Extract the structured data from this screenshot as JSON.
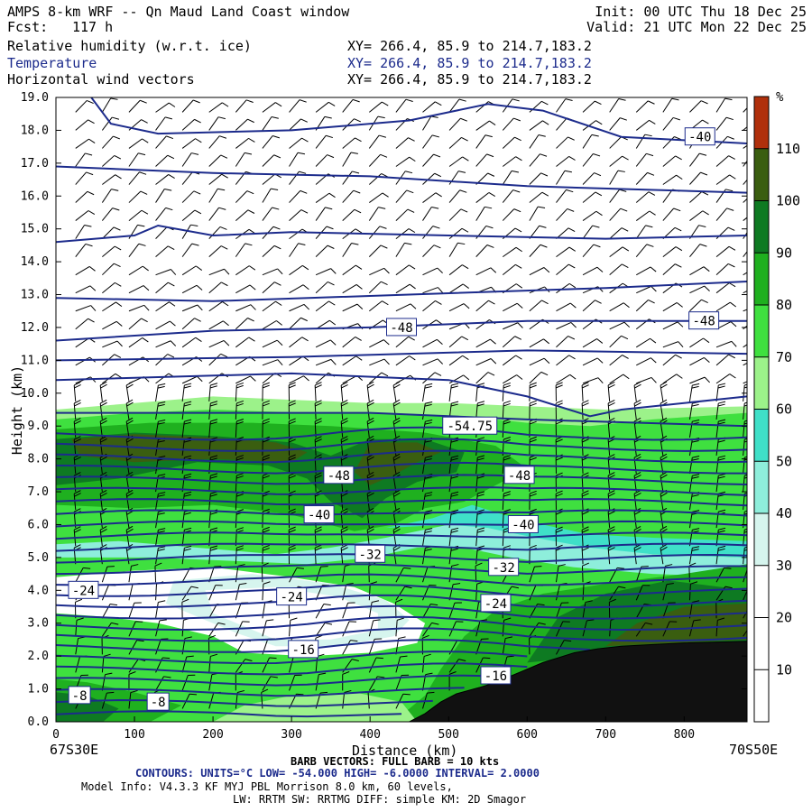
{
  "header": {
    "title_left": "AMPS 8-km WRF -- Qn Maud Land Coast window",
    "fcst_label": "Fcst:",
    "fcst_value": "117 h",
    "init": "Init: 00 UTC Thu 18 Dec 25",
    "valid": "Valid: 21 UTC Mon 22 Dec 25",
    "fields": [
      {
        "name": "Relative humidity (w.r.t. ice)",
        "xy": "XY= 266.4, 85.9 to 214.7,183.2"
      },
      {
        "name": "Temperature",
        "xy": "XY= 266.4, 85.9 to 214.7,183.2"
      },
      {
        "name": "Horizontal wind vectors",
        "xy": "XY= 266.4, 85.9 to 214.7,183.2"
      }
    ]
  },
  "footer": {
    "left_loc": "67S30E",
    "right_loc": "70S50E",
    "barb": "BARB VECTORS: FULL BARB = 10 kts",
    "contours": "CONTOURS: UNITS=°C LOW= -54.000 HIGH= -6.0000 INTERVAL= 2.0000",
    "model1": "Model Info: V4.3.3 KF MYJ PBL Morrison 8.0 km, 60 levels,",
    "model2": "LW: RRTM SW: RRTMG DIFF: simple KM: 2D Smagor"
  },
  "colors": {
    "contour": "#1c2b8c",
    "rh_30_40": "#d6f5ee",
    "rh_40_50": "#8eeedb",
    "rh_50_60": "#3fe0c8",
    "rh_60_70": "#9cf28a",
    "rh_70_80": "#3fe03f",
    "rh_80_90": "#1fb01f",
    "rh_90_100": "#0e7a22",
    "rh_100_110": "#3a5e10",
    "rh_110_plus": "#b0300c",
    "terrain": "#111111"
  },
  "chart_data": {
    "type": "heatmap",
    "xlabel": "Distance (km)",
    "ylabel": "Height (km)",
    "xlim": [
      0,
      880
    ],
    "ylim": [
      0,
      19
    ],
    "x_ticks": [
      "0",
      "100",
      "200",
      "300",
      "400",
      "500",
      "600",
      "700",
      "800"
    ],
    "y_ticks": [
      "0.0",
      "1.0",
      "2.0",
      "3.0",
      "4.0",
      "5.0",
      "6.0",
      "7.0",
      "8.0",
      "9.0",
      "10.0",
      "11.0",
      "12.0",
      "13.0",
      "14.0",
      "15.0",
      "16.0",
      "17.0",
      "18.0",
      "19.0"
    ],
    "colorbar_unit": "%",
    "colorbar_labels": [
      "10",
      "20",
      "30",
      "40",
      "50",
      "60",
      "70",
      "80",
      "90",
      "100",
      "110"
    ],
    "contour_labels": [
      {
        "text": "-40",
        "x": 820,
        "y": 17.8
      },
      {
        "text": "-48",
        "x": 440,
        "y": 12.0
      },
      {
        "text": "-48",
        "x": 825,
        "y": 12.2
      },
      {
        "text": "-54.75",
        "x": 527,
        "y": 9.0
      },
      {
        "text": "-48",
        "x": 360,
        "y": 7.5
      },
      {
        "text": "-48",
        "x": 590,
        "y": 7.5
      },
      {
        "text": "-40",
        "x": 335,
        "y": 6.3
      },
      {
        "text": "-40",
        "x": 595,
        "y": 6.0
      },
      {
        "text": "-32",
        "x": 400,
        "y": 5.1
      },
      {
        "text": "-32",
        "x": 570,
        "y": 4.7
      },
      {
        "text": "-24",
        "x": 35,
        "y": 4.0
      },
      {
        "text": "-24",
        "x": 300,
        "y": 3.8
      },
      {
        "text": "-24",
        "x": 560,
        "y": 3.6
      },
      {
        "text": "-16",
        "x": 315,
        "y": 2.2
      },
      {
        "text": "-16",
        "x": 560,
        "y": 1.4
      },
      {
        "text": "-8",
        "x": 30,
        "y": 0.8
      },
      {
        "text": "-8",
        "x": 130,
        "y": 0.6
      }
    ]
  }
}
